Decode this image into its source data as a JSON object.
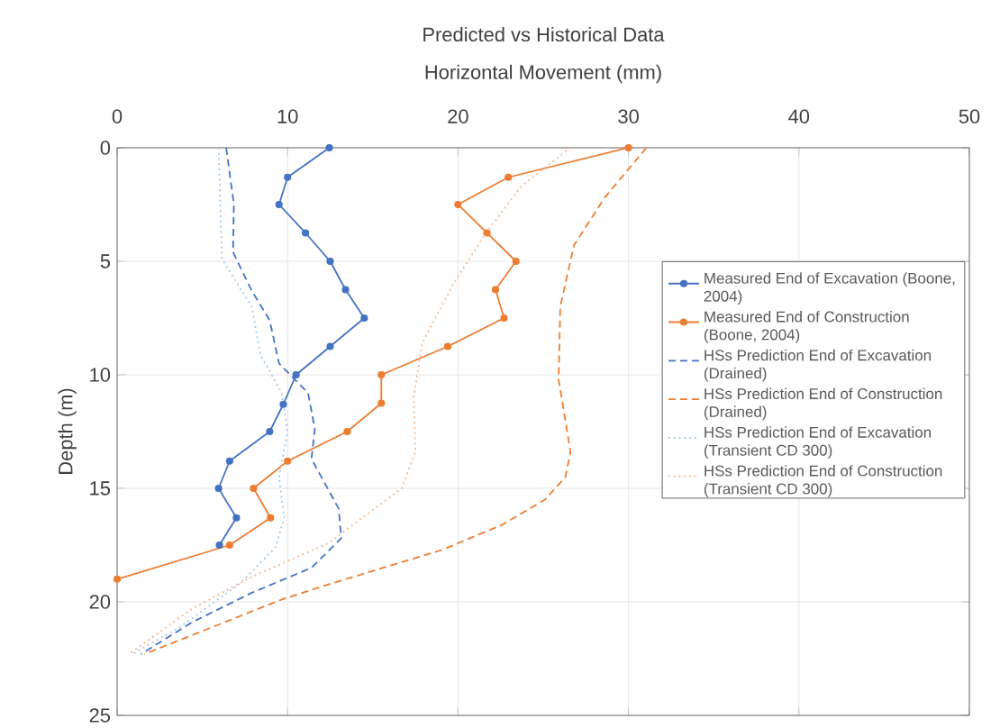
{
  "chart_data": {
    "type": "line",
    "title": "Predicted vs Historical Data",
    "xlabel": "Horizontal Movement (mm)",
    "ylabel": "Depth (m)",
    "xlim": [
      0,
      50
    ],
    "xticks": [
      0,
      10,
      20,
      30,
      40,
      50
    ],
    "ylim": [
      25,
      0
    ],
    "yticks": [
      0,
      5,
      10,
      15,
      20,
      25
    ],
    "grid": true,
    "legend": "right",
    "series": [
      {
        "name": "Measured End of Excavation (Boone, 2004)",
        "color": "#4472c4",
        "marker": "circle",
        "line_style": "solid",
        "x": [
          12.45,
          10.0,
          9.5,
          11.05,
          12.5,
          13.4,
          14.5,
          12.5,
          10.5,
          9.75,
          8.95,
          6.6,
          5.95,
          7.0,
          6.0
        ],
        "values": [
          0,
          1.3,
          2.5,
          3.75,
          5.0,
          6.25,
          7.5,
          8.75,
          10.0,
          11.3,
          12.5,
          13.8,
          15.0,
          16.3,
          17.5
        ]
      },
      {
        "name": "Measured End of Construction (Boone, 2004)",
        "color": "#ed7d31",
        "marker": "circle",
        "line_style": "solid",
        "x": [
          30,
          22.95,
          20.0,
          21.7,
          23.4,
          22.2,
          22.7,
          19.4,
          15.5,
          15.5,
          13.5,
          10.0,
          8.0,
          9.0,
          6.6,
          0
        ],
        "values": [
          0,
          1.3,
          2.5,
          3.75,
          5.0,
          6.25,
          7.5,
          8.75,
          10.0,
          11.25,
          12.5,
          13.8,
          15.0,
          16.3,
          17.5,
          19.0
        ]
      },
      {
        "name": "HSs Prediction End of Excavation (Drained)",
        "color": "#4472c4",
        "marker": "none",
        "line_style": "dashed",
        "x": [
          6.4,
          6.85,
          6.8,
          7.9,
          8.95,
          9.5,
          11.2,
          11.6,
          11.4,
          13.0,
          13.15,
          11.4,
          7.9,
          4.4,
          1.4
        ],
        "values": [
          0,
          2.5,
          4.6,
          6.3,
          7.6,
          9.5,
          10.8,
          12.4,
          13.7,
          15.9,
          17.2,
          18.5,
          19.6,
          20.9,
          22.3
        ]
      },
      {
        "name": "HSs Prediction End of Construction (Drained)",
        "color": "#ed7d31",
        "marker": "none",
        "line_style": "dashed",
        "x": [
          31.05,
          28.6,
          26.8,
          26.0,
          25.9,
          26.6,
          26.3,
          25.1,
          22.6,
          19.1,
          15.6,
          12.1,
          9.65,
          1.6
        ],
        "values": [
          0,
          2.2,
          4.3,
          7.0,
          10.2,
          13.4,
          14.5,
          15.5,
          16.6,
          17.7,
          18.5,
          19.3,
          19.9,
          22.3
        ]
      },
      {
        "name": "HSs Prediction End of Excavation (Transient CD 300)",
        "color": "#9dc3e6",
        "marker": "none",
        "line_style": "dotted",
        "x": [
          5.95,
          6.15,
          7.9,
          8.4,
          9.65,
          10.0,
          9.5,
          9.8,
          9.3,
          7.2,
          3.7,
          0.9
        ],
        "values": [
          0,
          4.9,
          7.0,
          9.1,
          10.8,
          12.5,
          14.5,
          16.3,
          17.6,
          19.2,
          21.1,
          22.3
        ]
      },
      {
        "name": "HSs Prediction End of Construction (Transient CD 300)",
        "color": "#f4b183",
        "marker": "none",
        "line_style": "dotted",
        "x": [
          26.6,
          23.7,
          21.6,
          19.8,
          17.9,
          17.4,
          17.5,
          16.7,
          14.2,
          12.45,
          7.9,
          4.4,
          0.7
        ],
        "values": [
          0,
          1.7,
          3.8,
          5.9,
          8.6,
          11.0,
          13.4,
          15.0,
          16.4,
          17.4,
          18.9,
          20.3,
          22.3
        ]
      }
    ]
  }
}
